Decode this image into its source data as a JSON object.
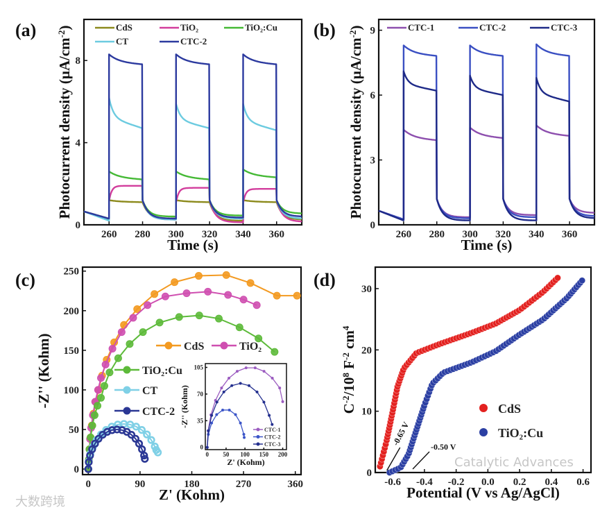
{
  "chart_data": [
    {
      "panel": "(a)",
      "type": "line",
      "xlabel": "Time (s)",
      "ylabel": [
        [
          "Photocurrent density (μA/cm",
          ""
        ],
        [
          "-2",
          "sup"
        ],
        [
          ")",
          ""
        ]
      ],
      "xlim": [
        245,
        375
      ],
      "ylim": [
        0,
        10
      ],
      "xticks": [
        260,
        280,
        300,
        320,
        340,
        360
      ],
      "yticks": [
        0,
        4,
        8
      ],
      "light_cycles": [
        [
          260,
          280
        ],
        [
          300,
          320
        ],
        [
          340,
          360
        ]
      ],
      "initial_dark": 0.65,
      "legend": "top",
      "series": [
        {
          "name": "CdS",
          "color": "#8c8a1c",
          "peak": [
            1.2,
            1.2,
            1.2
          ],
          "end": [
            1.1,
            1.1,
            1.1
          ],
          "dark": [
            0.25,
            0.3,
            0.2,
            0.25
          ],
          "shape": "spike"
        },
        {
          "name": "TiO₂",
          "color": "#d23d9c",
          "peak": [
            1.95,
            1.85,
            1.8
          ],
          "end": [
            1.9,
            1.8,
            1.75
          ],
          "dark": [
            0.3,
            0.25,
            0.12,
            0.15
          ],
          "shape": "rise"
        },
        {
          "name": "TiO₂:Cu",
          "color": "#45b935",
          "peak": [
            2.6,
            2.6,
            2.7
          ],
          "end": [
            2.2,
            2.2,
            2.3
          ],
          "dark": [
            0.3,
            0.4,
            0.45,
            0.55
          ],
          "shape": "spike"
        },
        {
          "name": "CT",
          "color": "#6ccbe0",
          "peak": [
            6.2,
            5.9,
            5.9
          ],
          "end": [
            4.7,
            4.7,
            4.6
          ],
          "dark": [
            0.2,
            0.25,
            0.3,
            0.3
          ],
          "shape": "fastspike"
        },
        {
          "name": "CTC-2",
          "color": "#2c3a9f",
          "peak": [
            8.3,
            8.3,
            8.3
          ],
          "end": [
            7.8,
            7.8,
            7.8
          ],
          "dark": [
            0.3,
            0.3,
            0.35,
            0.4
          ],
          "shape": "spike"
        }
      ]
    },
    {
      "panel": "(b)",
      "type": "line",
      "xlabel": "Time (s)",
      "ylabel": [
        [
          "Photocurrent density (μA/cm",
          ""
        ],
        [
          "-2",
          "sup"
        ],
        [
          ")",
          ""
        ]
      ],
      "xlim": [
        245,
        375
      ],
      "ylim": [
        0,
        9.5
      ],
      "xticks": [
        260,
        280,
        300,
        320,
        340,
        360
      ],
      "yticks": [
        0,
        3,
        6,
        9
      ],
      "light_cycles": [
        [
          260,
          280
        ],
        [
          300,
          320
        ],
        [
          340,
          360
        ]
      ],
      "initial_dark": 0.65,
      "legend": "top",
      "series": [
        {
          "name": "CTC-1",
          "color": "#8d4fae",
          "peak": [
            4.4,
            4.5,
            4.6
          ],
          "end": [
            3.9,
            4.0,
            4.1
          ],
          "dark": [
            0.25,
            0.35,
            0.45,
            0.55
          ],
          "shape": "spike"
        },
        {
          "name": "CTC-2",
          "color": "#3a4fc2",
          "peak": [
            8.3,
            8.3,
            8.35
          ],
          "end": [
            7.8,
            7.8,
            7.8
          ],
          "dark": [
            0.25,
            0.3,
            0.35,
            0.4
          ],
          "shape": "spike"
        },
        {
          "name": "CTC-3",
          "color": "#1e2a88",
          "peak": [
            7.1,
            6.9,
            6.8
          ],
          "end": [
            6.2,
            6.0,
            5.7
          ],
          "dark": [
            0.2,
            0.2,
            0.2,
            0.3
          ],
          "shape": "fastspike"
        }
      ]
    },
    {
      "panel": "(c)",
      "type": "scatter",
      "xlabel": "Z' (Kohm)",
      "ylabel": [
        [
          "-Z'' (Kohm)",
          ""
        ]
      ],
      "xlim": [
        -10,
        370
      ],
      "ylim": [
        -7,
        255
      ],
      "xticks": [
        0,
        90,
        180,
        270,
        360
      ],
      "yticks": [
        0,
        50,
        100,
        150,
        200,
        250
      ],
      "legend": "center",
      "series": [
        {
          "name": "CdS",
          "color": "#f39a21",
          "points": [
            [
              0,
              0
            ],
            [
              1,
              12
            ],
            [
              2,
              25
            ],
            [
              4,
              40
            ],
            [
              6,
              55
            ],
            [
              9,
              70
            ],
            [
              13,
              85
            ],
            [
              18,
              100
            ],
            [
              24,
              118
            ],
            [
              32,
              138
            ],
            [
              45,
              160
            ],
            [
              62,
              182
            ],
            [
              85,
              202
            ],
            [
              115,
              221
            ],
            [
              150,
              236
            ],
            [
              192,
              244
            ],
            [
              240,
              245
            ],
            [
              282,
              235
            ],
            [
              328,
              219
            ],
            [
              363,
              219
            ]
          ]
        },
        {
          "name": "TiO₂",
          "color": "#cf4fb0",
          "points": [
            [
              0,
              0
            ],
            [
              1,
              12
            ],
            [
              2,
              25
            ],
            [
              3,
              38
            ],
            [
              5,
              52
            ],
            [
              8,
              68
            ],
            [
              12,
              85
            ],
            [
              17,
              100
            ],
            [
              22,
              115
            ],
            [
              30,
              132
            ],
            [
              42,
              152
            ],
            [
              58,
              173
            ],
            [
              78,
              191
            ],
            [
              103,
              207
            ],
            [
              134,
              218
            ],
            [
              171,
              222
            ],
            [
              208,
              224
            ],
            [
              243,
              220
            ],
            [
              270,
              214
            ],
            [
              293,
              207
            ]
          ]
        },
        {
          "name": "TiO₂:Cu",
          "color": "#5dba3a",
          "points": [
            [
              0,
              0
            ],
            [
              1,
              12
            ],
            [
              2,
              25
            ],
            [
              4,
              40
            ],
            [
              7,
              55
            ],
            [
              11,
              68
            ],
            [
              16,
              80
            ],
            [
              22,
              90
            ],
            [
              28,
              105
            ],
            [
              37,
              122
            ],
            [
              52,
              140
            ],
            [
              72,
              158
            ],
            [
              95,
              173
            ],
            [
              124,
              185
            ],
            [
              158,
              192
            ],
            [
              193,
              194
            ],
            [
              227,
              190
            ],
            [
              263,
              179
            ],
            [
              296,
              165
            ],
            [
              324,
              148
            ]
          ]
        },
        {
          "name": "CT",
          "color": "#7fd0e6",
          "points": [
            [
              0,
              0
            ],
            [
              0.9,
              9.9
            ],
            [
              3.7,
              19.5
            ],
            [
              8.3,
              28.5
            ],
            [
              14.5,
              36.7
            ],
            [
              22.1,
              43.7
            ],
            [
              31,
              49.4
            ],
            [
              40.8,
              53.6
            ],
            [
              51.2,
              56.2
            ],
            [
              62,
              57
            ],
            [
              72.8,
              56.2
            ],
            [
              83.2,
              53.6
            ],
            [
              93,
              49.4
            ],
            [
              101.9,
              43.7
            ],
            [
              109.5,
              36.7
            ],
            [
              115.7,
              28.5
            ],
            [
              118.2,
              24.1
            ],
            [
              121,
              21
            ]
          ]
        },
        {
          "name": "CTC-2",
          "color": "#2b3794",
          "points": [
            [
              0,
              0
            ],
            [
              0.8,
              8.7
            ],
            [
              3,
              17.1
            ],
            [
              6.7,
              25
            ],
            [
              11.7,
              32.1
            ],
            [
              17.9,
              38.3
            ],
            [
              25,
              43.3
            ],
            [
              32.9,
              47
            ],
            [
              41.3,
              49.2
            ],
            [
              50,
              50
            ],
            [
              58.7,
              49.2
            ],
            [
              67.1,
              47
            ],
            [
              75,
              43.3
            ],
            [
              82.1,
              38.3
            ],
            [
              88.3,
              32.1
            ],
            [
              93.3,
              25
            ],
            [
              97,
              17.1
            ],
            [
              98.3,
              12.9
            ]
          ]
        }
      ],
      "inset": {
        "xlabel": "Z' (Kohm)",
        "ylabel": "-Z'' (Kohm)",
        "xlim": [
          -5,
          210
        ],
        "ylim": [
          -3,
          110
        ],
        "xticks": [
          0,
          50,
          100,
          150,
          200
        ],
        "yticks": [
          0,
          35,
          70,
          105
        ],
        "legend": "bottom-right",
        "series": [
          {
            "name": "CTC-1",
            "color": "#9b5cc0",
            "points": [
              [
                0,
                0
              ],
              [
                2.5,
                21.8
              ],
              [
                9.9,
                42.7
              ],
              [
                22,
                61.7
              ],
              [
                38,
                78
              ],
              [
                57.5,
                90.9
              ],
              [
                79.5,
                99.9
              ],
              [
                103,
                104.4
              ],
              [
                127,
                104.4
              ],
              [
                150.5,
                99.9
              ],
              [
                172.5,
                90.9
              ],
              [
                192,
                78
              ],
              [
                200,
                60
              ]
            ]
          },
          {
            "name": "CTC-2",
            "color": "#3b55c8",
            "points": [
              [
                0,
                0
              ],
              [
                3,
                17
              ],
              [
                11.7,
                32
              ],
              [
                25,
                43
              ],
              [
                41,
                49
              ],
              [
                58.7,
                49
              ],
              [
                75,
                43
              ],
              [
                88,
                32
              ],
              [
                97,
                17
              ],
              [
                98,
                13
              ]
            ]
          },
          {
            "name": "CTC-3",
            "color": "#24308f",
            "points": [
              [
                0,
                0
              ],
              [
                3,
                21.7
              ],
              [
                11.8,
                42
              ],
              [
                25.8,
                59.4
              ],
              [
                44,
                72.7
              ],
              [
                65.2,
                81.1
              ],
              [
                88,
                84
              ],
              [
                110.8,
                81.1
              ],
              [
                132,
                72.7
              ],
              [
                150.2,
                59.4
              ],
              [
                164.2,
                42
              ],
              [
                172,
                30
              ]
            ]
          }
        ]
      }
    },
    {
      "panel": "(d)",
      "type": "scatter",
      "xlabel": "Potential (V vs Ag/AgCl)",
      "ylabel": [
        [
          "C",
          ""
        ],
        [
          "-2",
          "sup"
        ],
        [
          "/10",
          ""
        ],
        [
          "8",
          "sup"
        ],
        [
          " F",
          ""
        ],
        [
          "-2",
          "sup"
        ],
        [
          " cm",
          ""
        ],
        [
          "4",
          "sup"
        ]
      ],
      "xlim": [
        -0.71,
        0.65
      ],
      "ylim": [
        0,
        33.5
      ],
      "xticks": [
        -0.6,
        -0.4,
        -0.2,
        0.0,
        0.2,
        0.4,
        0.6
      ],
      "xticklabels": [
        "-0.6",
        "-0.4",
        "-0.2",
        "0.0",
        "0.2",
        "0.4",
        "0.6"
      ],
      "yticks": [
        0,
        10,
        20,
        30
      ],
      "legend": "center-right",
      "series": [
        {
          "name": "CdS",
          "color": "#e3211f",
          "points": [
            [
              -0.68,
              1
            ],
            [
              -0.64,
              5
            ],
            [
              -0.6,
              10
            ],
            [
              -0.57,
              14
            ],
            [
              -0.53,
              17
            ],
            [
              -0.45,
              19.5
            ],
            [
              -0.3,
              21
            ],
            [
              -0.1,
              22.8
            ],
            [
              0.05,
              24.3
            ],
            [
              0.2,
              26.5
            ],
            [
              0.35,
              29.5
            ],
            [
              0.45,
              32
            ]
          ]
        },
        {
          "name": "TiO₂:Cu",
          "color": "#2b3fa3",
          "points": [
            [
              -0.62,
              0
            ],
            [
              -0.55,
              0.8
            ],
            [
              -0.5,
              3
            ],
            [
              -0.45,
              7
            ],
            [
              -0.4,
              11
            ],
            [
              -0.35,
              14.5
            ],
            [
              -0.28,
              16.3
            ],
            [
              -0.1,
              18
            ],
            [
              0.05,
              19.8
            ],
            [
              0.2,
              22.5
            ],
            [
              0.35,
              25
            ],
            [
              0.5,
              28.5
            ],
            [
              0.6,
              31.5
            ]
          ]
        }
      ],
      "annotations": [
        {
          "text": "-0.65 V",
          "x": -0.65,
          "y": 0
        },
        {
          "text": "-0.50 V",
          "x": -0.5,
          "y": 0
        }
      ]
    }
  ],
  "watermarks": [
    "Catalytic Advances",
    "大数跨境"
  ]
}
